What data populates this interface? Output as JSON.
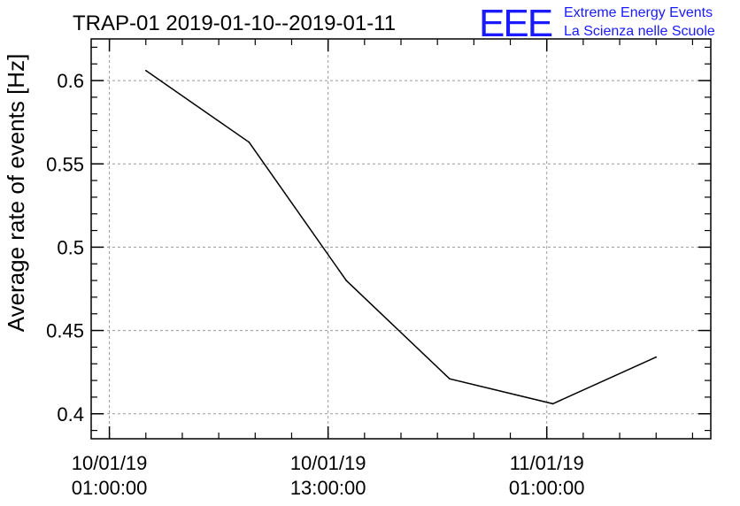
{
  "chart_data": {
    "type": "line",
    "title": "TRAP-01 2019-01-10--2019-01-11",
    "ylabel": "Average rate of events [Hz]",
    "xlabel": "",
    "ylim": [
      0.385,
      0.625
    ],
    "xlim": [
      "2019-01-10T00:00",
      "2019-01-11T10:00"
    ],
    "grid": true,
    "x_ticks": [
      {
        "value": "2019-01-10T01:00",
        "line1": "10/01/19",
        "line2": "01:00:00"
      },
      {
        "value": "2019-01-10T13:00",
        "line1": "10/01/19",
        "line2": "13:00:00"
      },
      {
        "value": "2019-01-11T01:00",
        "line1": "11/01/19",
        "line2": "01:00:00"
      }
    ],
    "y_ticks": [
      {
        "value": 0.4,
        "label": "0.4"
      },
      {
        "value": 0.45,
        "label": "0.45"
      },
      {
        "value": 0.5,
        "label": "0.5"
      },
      {
        "value": 0.55,
        "label": "0.55"
      },
      {
        "value": 0.6,
        "label": "0.6"
      }
    ],
    "series": [
      {
        "x": [
          "2019-01-10T03:00",
          "2019-01-10T08:40",
          "2019-01-10T14:00",
          "2019-01-10T19:40",
          "2019-01-11T01:20",
          "2019-01-11T07:00"
        ],
        "y": [
          0.606,
          0.563,
          0.48,
          0.421,
          0.406,
          0.434
        ],
        "color": "#000000"
      }
    ]
  },
  "logo": {
    "mark": "EEE",
    "line1": "Extreme Energy Events",
    "line2": "La Scienza nelle Scuole",
    "color": "#1a1aff"
  }
}
